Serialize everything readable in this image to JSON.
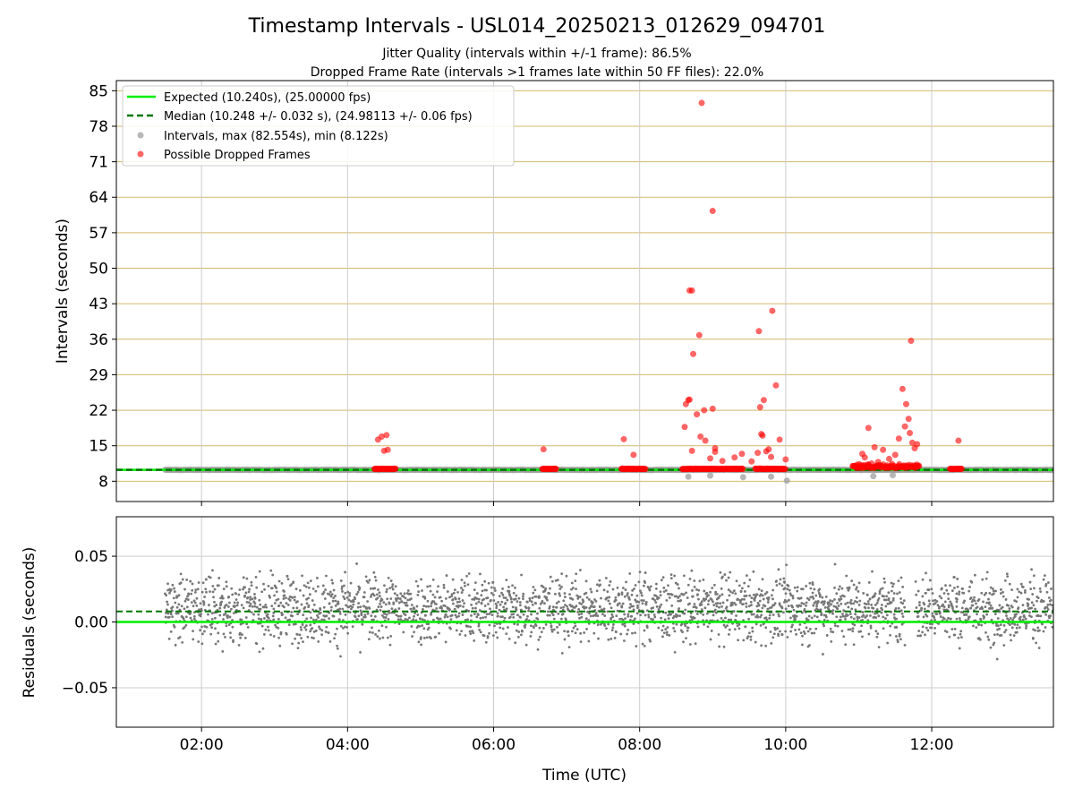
{
  "title": "Timestamp Intervals - USL014_20250213_012629_094701",
  "subtitle_line1": "Jitter Quality (intervals within +/-1 frame): 86.5%",
  "subtitle_line2": "Dropped Frame Rate (intervals >1 frames late within 50 FF files): 22.0%",
  "colors": {
    "expected": "#00ee00",
    "median": "#007700",
    "intervals": "#999999",
    "dropped": "#ff0000",
    "residuals": "#777777",
    "hgrid_top": "#d4b96a",
    "grid": "#cccccc"
  },
  "chart_data": [
    {
      "type": "scatter",
      "panel": "intervals",
      "xlabel": "",
      "ylabel": "Intervals (seconds)",
      "xlim": [
        "00:50",
        "13:40"
      ],
      "ylim": [
        4.0,
        87.0
      ],
      "y_ticks": [
        "8",
        "15",
        "22",
        "29",
        "36",
        "43",
        "50",
        "57",
        "64",
        "71",
        "78",
        "85"
      ],
      "x_ticks": [
        "02:00",
        "04:00",
        "06:00",
        "08:00",
        "10:00",
        "12:00"
      ],
      "grid": true,
      "legend_position": "top-left",
      "legend": [
        {
          "label": "Expected (10.240s), (25.00000 fps)",
          "kind": "solid-line"
        },
        {
          "label": "Median (10.248 +/- 0.032 s), (24.98113 +/- 0.06 fps)",
          "kind": "dashed-line"
        },
        {
          "label": "Intervals, max (82.554s), min (8.122s)",
          "kind": "gray-marker"
        },
        {
          "label": "Possible Dropped Frames",
          "kind": "red-marker"
        }
      ],
      "expected_value": 10.24,
      "median_value": 10.248,
      "intervals_summary": {
        "start": "01:30",
        "end": "13:40",
        "typical": 10.24,
        "max": 82.554,
        "min": 8.122
      },
      "dropped_frame_segments": [
        {
          "start": "04:22",
          "end": "04:40",
          "value": 10.4
        },
        {
          "start": "06:40",
          "end": "06:52",
          "value": 10.4
        },
        {
          "start": "07:45",
          "end": "08:05",
          "value": 10.4
        },
        {
          "start": "08:35",
          "end": "09:25",
          "value": 10.4
        },
        {
          "start": "09:35",
          "end": "10:00",
          "value": 10.4
        },
        {
          "start": "10:55",
          "end": "11:50",
          "value": 10.6
        },
        {
          "start": "12:15",
          "end": "12:25",
          "value": 10.4
        }
      ],
      "dropped_frames": [
        {
          "x": "04:25",
          "y": 16.2
        },
        {
          "x": "04:28",
          "y": 16.8
        },
        {
          "x": "04:30",
          "y": 14.0
        },
        {
          "x": "04:32",
          "y": 17.1
        },
        {
          "x": "04:33",
          "y": 14.2
        },
        {
          "x": "06:41",
          "y": 14.3
        },
        {
          "x": "07:47",
          "y": 16.3
        },
        {
          "x": "07:55",
          "y": 13.2
        },
        {
          "x": "08:37",
          "y": 18.7
        },
        {
          "x": "08:38",
          "y": 23.2
        },
        {
          "x": "08:40",
          "y": 24.0
        },
        {
          "x": "08:41",
          "y": 24.1
        },
        {
          "x": "08:41",
          "y": 45.6
        },
        {
          "x": "08:43",
          "y": 45.6
        },
        {
          "x": "08:43",
          "y": 14.0
        },
        {
          "x": "08:44",
          "y": 33.1
        },
        {
          "x": "08:47",
          "y": 21.2
        },
        {
          "x": "08:49",
          "y": 36.8
        },
        {
          "x": "08:50",
          "y": 16.8
        },
        {
          "x": "08:51",
          "y": 82.6
        },
        {
          "x": "08:53",
          "y": 22.0
        },
        {
          "x": "08:54",
          "y": 16.0
        },
        {
          "x": "08:58",
          "y": 12.5
        },
        {
          "x": "09:00",
          "y": 61.3
        },
        {
          "x": "09:00",
          "y": 22.3
        },
        {
          "x": "09:02",
          "y": 14.5
        },
        {
          "x": "09:02",
          "y": 13.8
        },
        {
          "x": "09:08",
          "y": 12.0
        },
        {
          "x": "09:18",
          "y": 12.7
        },
        {
          "x": "09:24",
          "y": 13.4
        },
        {
          "x": "09:32",
          "y": 11.9
        },
        {
          "x": "09:37",
          "y": 13.6
        },
        {
          "x": "09:38",
          "y": 37.6
        },
        {
          "x": "09:39",
          "y": 22.6
        },
        {
          "x": "09:40",
          "y": 17.3
        },
        {
          "x": "09:41",
          "y": 17.0
        },
        {
          "x": "09:42",
          "y": 24.0
        },
        {
          "x": "09:44",
          "y": 13.9
        },
        {
          "x": "09:46",
          "y": 14.3
        },
        {
          "x": "09:48",
          "y": 12.8
        },
        {
          "x": "09:49",
          "y": 41.6
        },
        {
          "x": "09:52",
          "y": 26.9
        },
        {
          "x": "09:55",
          "y": 16.2
        },
        {
          "x": "10:00",
          "y": 12.3
        },
        {
          "x": "11:03",
          "y": 13.4
        },
        {
          "x": "11:05",
          "y": 12.7
        },
        {
          "x": "11:08",
          "y": 18.5
        },
        {
          "x": "11:13",
          "y": 14.7
        },
        {
          "x": "11:16",
          "y": 11.8
        },
        {
          "x": "11:20",
          "y": 14.2
        },
        {
          "x": "11:25",
          "y": 12.4
        },
        {
          "x": "11:30",
          "y": 13.2
        },
        {
          "x": "11:33",
          "y": 16.4
        },
        {
          "x": "11:36",
          "y": 26.2
        },
        {
          "x": "11:38",
          "y": 18.8
        },
        {
          "x": "11:39",
          "y": 23.2
        },
        {
          "x": "11:41",
          "y": 20.3
        },
        {
          "x": "11:42",
          "y": 17.5
        },
        {
          "x": "11:43",
          "y": 35.7
        },
        {
          "x": "11:44",
          "y": 15.6
        },
        {
          "x": "11:46",
          "y": 14.5
        },
        {
          "x": "11:48",
          "y": 15.3
        },
        {
          "x": "12:22",
          "y": 16.0
        }
      ],
      "low_intervals": [
        {
          "x": "08:40",
          "y": 8.9
        },
        {
          "x": "08:58",
          "y": 9.1
        },
        {
          "x": "09:25",
          "y": 8.8
        },
        {
          "x": "09:48",
          "y": 8.9
        },
        {
          "x": "10:01",
          "y": 8.1
        },
        {
          "x": "11:12",
          "y": 9.0
        },
        {
          "x": "11:28",
          "y": 9.2
        }
      ]
    },
    {
      "type": "scatter",
      "panel": "residuals",
      "xlabel": "Time (UTC)",
      "ylabel": "Residuals (seconds)",
      "xlim": [
        "00:50",
        "13:40"
      ],
      "ylim": [
        -0.08,
        0.08
      ],
      "y_ticks": [
        "0.05",
        "0.00",
        "−0.05"
      ],
      "x_ticks": [
        "02:00",
        "04:00",
        "06:00",
        "08:00",
        "10:00",
        "12:00"
      ],
      "grid": true,
      "expected_residual": 0.0,
      "median_residual": 0.008,
      "residual_summary": {
        "start": "01:30",
        "end": "13:40",
        "center": 0.01,
        "spread": 0.025,
        "gap_start": "11:38",
        "gap_end": "11:47"
      }
    }
  ]
}
